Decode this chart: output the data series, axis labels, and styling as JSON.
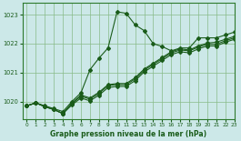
{
  "xlabel": "Graphe pression niveau de la mer (hPa)",
  "bg_color": "#cce8e8",
  "line_color": "#1a5c1a",
  "grid_color": "#88bb88",
  "spine_color": "#2d7a2d",
  "ylim": [
    1019.4,
    1023.4
  ],
  "xlim": [
    -0.5,
    23
  ],
  "yticks": [
    1020,
    1021,
    1022,
    1023
  ],
  "xticks": [
    0,
    1,
    2,
    3,
    4,
    5,
    6,
    7,
    8,
    9,
    10,
    11,
    12,
    13,
    14,
    15,
    16,
    17,
    18,
    19,
    20,
    21,
    22,
    23
  ],
  "series": [
    {
      "x": [
        0,
        1,
        2,
        3,
        4,
        5,
        6,
        7,
        8,
        9,
        10,
        11,
        12,
        13,
        14,
        15,
        16,
        17,
        18,
        19,
        20,
        21,
        22,
        23
      ],
      "y": [
        1019.85,
        1019.95,
        1019.85,
        1019.75,
        1019.65,
        1020.0,
        1020.3,
        1021.1,
        1021.5,
        1021.85,
        1023.1,
        1023.05,
        1022.65,
        1022.45,
        1022.0,
        1021.9,
        1021.75,
        1021.85,
        1021.85,
        1022.2,
        1022.2,
        1022.2,
        1022.3,
        1022.4
      ]
    },
    {
      "x": [
        0,
        1,
        2,
        3,
        4,
        5,
        6,
        7,
        8,
        9,
        10,
        11,
        12,
        13,
        14,
        15,
        16,
        17,
        18,
        19,
        20,
        21,
        22,
        23
      ],
      "y": [
        1019.85,
        1019.95,
        1019.82,
        1019.72,
        1019.58,
        1019.88,
        1020.12,
        1020.02,
        1020.22,
        1020.48,
        1020.52,
        1020.52,
        1020.72,
        1021.02,
        1021.22,
        1021.42,
        1021.62,
        1021.72,
        1021.68,
        1021.82,
        1021.92,
        1021.92,
        1022.05,
        1022.15
      ]
    },
    {
      "x": [
        0,
        1,
        2,
        3,
        4,
        5,
        6,
        7,
        8,
        9,
        10,
        11,
        12,
        13,
        14,
        15,
        16,
        17,
        18,
        19,
        20,
        21,
        22,
        23
      ],
      "y": [
        1019.85,
        1019.95,
        1019.82,
        1019.72,
        1019.58,
        1019.92,
        1020.18,
        1020.08,
        1020.28,
        1020.55,
        1020.58,
        1020.58,
        1020.78,
        1021.08,
        1021.28,
        1021.48,
        1021.68,
        1021.78,
        1021.75,
        1021.88,
        1021.98,
        1021.98,
        1022.1,
        1022.2
      ]
    },
    {
      "x": [
        0,
        1,
        2,
        3,
        4,
        5,
        6,
        7,
        8,
        9,
        10,
        11,
        12,
        13,
        14,
        15,
        16,
        17,
        18,
        19,
        20,
        21,
        22,
        23
      ],
      "y": [
        1019.85,
        1019.95,
        1019.82,
        1019.72,
        1019.58,
        1019.95,
        1020.22,
        1020.12,
        1020.32,
        1020.58,
        1020.62,
        1020.62,
        1020.82,
        1021.12,
        1021.32,
        1021.52,
        1021.72,
        1021.82,
        1021.78,
        1021.92,
        1022.02,
        1022.05,
        1022.15,
        1022.25
      ]
    }
  ]
}
